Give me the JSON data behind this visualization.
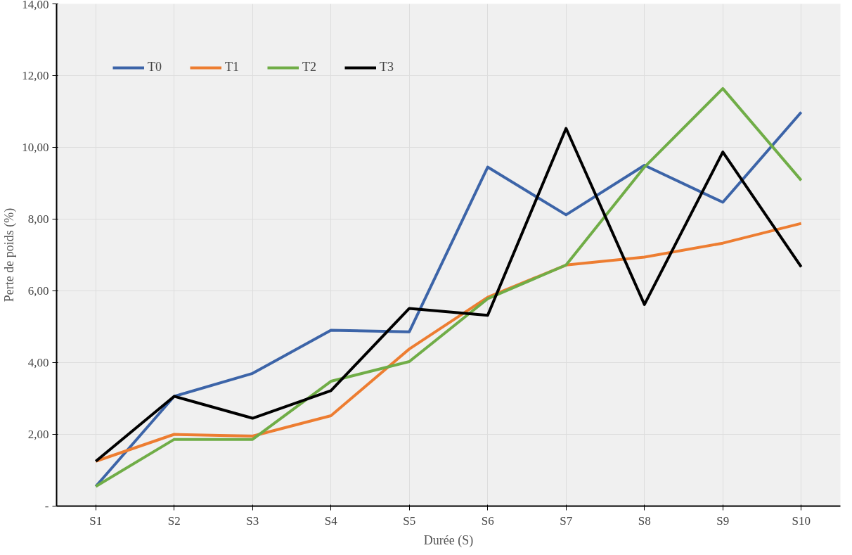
{
  "chart_data": {
    "type": "line",
    "xlabel": "Durée (S)",
    "ylabel": "Perte de poids (%)",
    "categories": [
      "S1",
      "S2",
      "S3",
      "S4",
      "S5",
      "S6",
      "S7",
      "S8",
      "S9",
      "S10"
    ],
    "ylim": [
      0,
      14
    ],
    "yticks": [
      {
        "value": 0,
        "label": "-"
      },
      {
        "value": 2,
        "label": "2,00"
      },
      {
        "value": 4,
        "label": "4,00"
      },
      {
        "value": 6,
        "label": "6,00"
      },
      {
        "value": 8,
        "label": "8,00"
      },
      {
        "value": 10,
        "label": "10,00"
      },
      {
        "value": 12,
        "label": "12,00"
      },
      {
        "value": 14,
        "label": "14,00"
      }
    ],
    "series": [
      {
        "name": "T0",
        "color": "#3c64a8",
        "values": [
          0.55,
          3.06,
          3.7,
          4.9,
          4.86,
          9.45,
          8.12,
          9.5,
          8.47,
          10.98
        ]
      },
      {
        "name": "T1",
        "color": "#ed7d31",
        "values": [
          1.25,
          2.0,
          1.95,
          2.52,
          4.38,
          5.82,
          6.72,
          6.94,
          7.33,
          7.88
        ]
      },
      {
        "name": "T2",
        "color": "#70ad47",
        "values": [
          0.55,
          1.86,
          1.86,
          3.48,
          4.03,
          5.78,
          6.72,
          9.45,
          11.64,
          9.08
        ]
      },
      {
        "name": "T3",
        "color": "#000000",
        "values": [
          1.25,
          3.06,
          2.45,
          3.22,
          5.51,
          5.32,
          10.53,
          5.62,
          9.87,
          6.67
        ]
      }
    ],
    "grid": true,
    "legend": "top left",
    "marker": "none",
    "line_style": "solid"
  }
}
